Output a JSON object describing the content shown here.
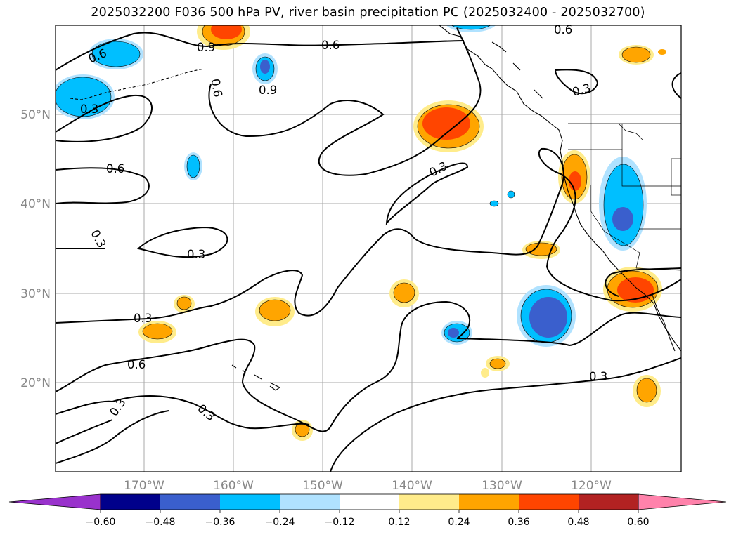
{
  "title": "2025032200 F036 500 hPa PV, river basin precipitation PC (2025032400 - 2025032700)",
  "colors": {
    "frame": "#000000",
    "grid": "#a9a9a9",
    "contour": "#000000",
    "axis_label": "#888888"
  },
  "map": {
    "lat_labels": [
      "50°N",
      "40°N",
      "30°N",
      "20°N"
    ],
    "lon_labels": [
      "170°W",
      "160°W",
      "150°W",
      "140°W",
      "130°W",
      "120°W"
    ],
    "contour_labels": [
      "0.6",
      "0.9",
      "0.6",
      "0.6",
      "0.9",
      "0.6",
      "0.3",
      "0.3",
      "0.6",
      "0.3",
      "0.3",
      "0.3",
      "0.3",
      "0.6",
      "0.3",
      "0.3"
    ]
  },
  "colorbar": {
    "ticks": [
      "−0.60",
      "−0.48",
      "−0.36",
      "−0.24",
      "−0.12",
      "0.12",
      "0.24",
      "0.36",
      "0.48",
      "0.60"
    ],
    "colors": [
      "#9932cc",
      "#00008b",
      "#3a5fcd",
      "#00bfff",
      "#b0e2ff",
      "#ffffff",
      "#ffec8b",
      "#ffa500",
      "#ff4500",
      "#b22222",
      "#ff82ab"
    ]
  }
}
